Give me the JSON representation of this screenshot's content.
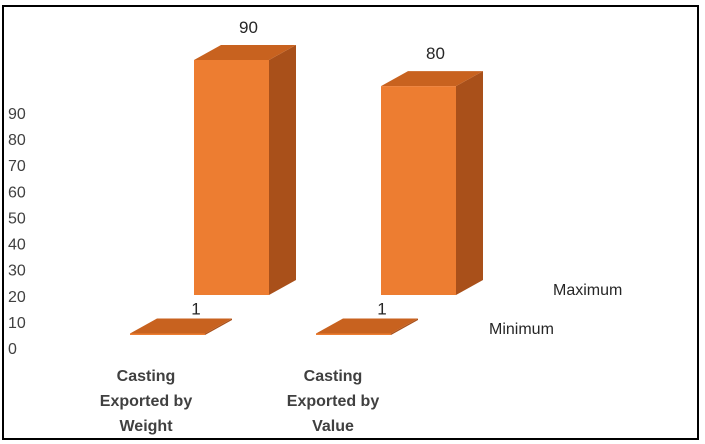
{
  "chart_data": {
    "type": "bar",
    "style": "3d-column",
    "categories": [
      [
        "Casting",
        "Exported by",
        "Weight"
      ],
      [
        "Casting",
        "Exported by",
        "Value"
      ]
    ],
    "series": [
      {
        "name": "Maximum",
        "values": [
          90,
          80
        ]
      },
      {
        "name": "Minimum",
        "values": [
          1,
          1
        ]
      }
    ],
    "y_ticks": [
      0,
      10,
      20,
      30,
      40,
      50,
      60,
      70,
      80,
      90
    ],
    "ylim": [
      0,
      90
    ],
    "grid": false,
    "legend": "none",
    "colors": {
      "front": "#ED7D31",
      "side": "#A9501A",
      "top": "#C8621F"
    }
  }
}
